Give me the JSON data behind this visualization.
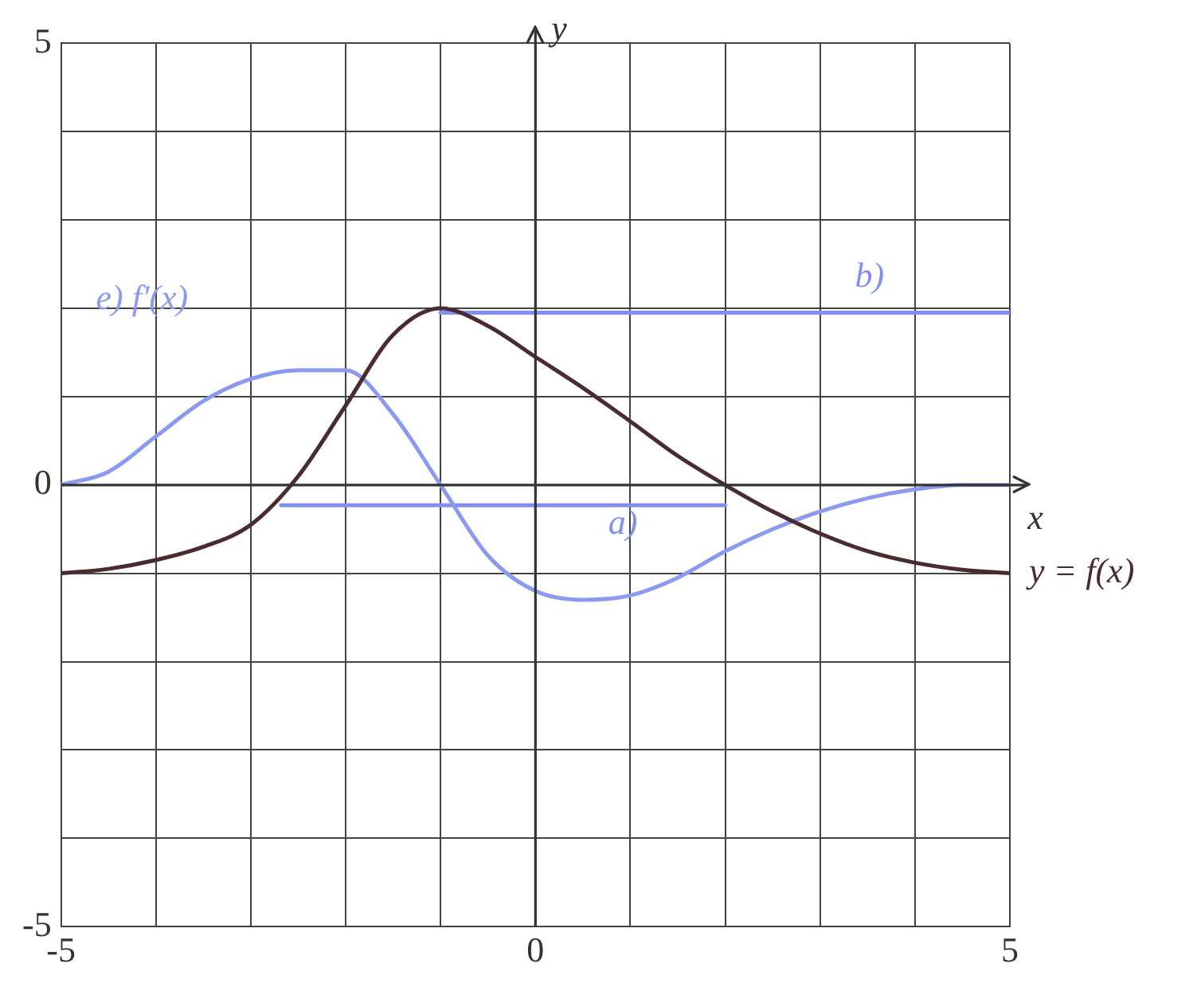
{
  "chart_data": {
    "type": "line",
    "xlabel": "x",
    "ylabel": "y",
    "xlim": [
      -5,
      5
    ],
    "ylim": [
      -5,
      5
    ],
    "xticks": [
      -5,
      {
        "value": -4,
        "label": null
      },
      {
        "value": -3,
        "label": null
      },
      {
        "value": -2,
        "label": null
      },
      {
        "value": -1,
        "label": null
      },
      0,
      {
        "value": 1,
        "label": null
      },
      {
        "value": 2,
        "label": null
      },
      {
        "value": 3,
        "label": null
      },
      {
        "value": 4,
        "label": null
      },
      5
    ],
    "yticks": [
      -5,
      {
        "value": -4,
        "label": null
      },
      {
        "value": -3,
        "label": null
      },
      {
        "value": -2,
        "label": null
      },
      {
        "value": -1,
        "label": null
      },
      0,
      {
        "value": 1,
        "label": null
      },
      {
        "value": 2,
        "label": null
      },
      {
        "value": 3,
        "label": null
      },
      {
        "value": 4,
        "label": null
      },
      5
    ],
    "grid": true,
    "marker": "none",
    "line_style": "solid",
    "series": [
      {
        "name": "y = f(x)",
        "color": "#4a2b2e",
        "x": [
          -5,
          -4.5,
          -4,
          -3.5,
          -3,
          -2.5,
          -2,
          -1.5,
          -1,
          -0.5,
          0,
          0.5,
          1,
          1.5,
          2,
          2.5,
          3,
          3.5,
          4,
          4.5,
          5
        ],
        "values": [
          -1,
          -0.95,
          -0.85,
          -0.7,
          -0.45,
          0.1,
          0.9,
          1.7,
          2,
          1.8,
          1.45,
          1.1,
          0.72,
          0.33,
          0,
          -0.3,
          -0.55,
          -0.75,
          -0.88,
          -0.96,
          -1
        ]
      },
      {
        "name": "e) f'(x)",
        "color": "#8a9af0",
        "x": [
          -5,
          -4.5,
          -4,
          -3.5,
          -3,
          -2.5,
          -2,
          -1.5,
          -1,
          -0.5,
          0,
          0.5,
          1,
          1.5,
          2,
          2.5,
          3,
          3.5,
          4,
          4.5,
          5
        ],
        "values": [
          0,
          0.15,
          0.55,
          0.95,
          1.2,
          1.3,
          1.3,
          0.8,
          0,
          -0.8,
          -1.2,
          -1.3,
          -1.25,
          -1.05,
          -0.75,
          -0.5,
          -0.3,
          -0.15,
          -0.05,
          0,
          0
        ]
      },
      {
        "name": "a)",
        "color": "#7f90f0",
        "x": [
          -2.68,
          2
        ],
        "values": [
          -0.23,
          -0.23
        ]
      },
      {
        "name": "b)",
        "color": "#7f90f0",
        "x": [
          -1,
          5
        ],
        "values": [
          1.95,
          1.95
        ]
      }
    ]
  }
}
